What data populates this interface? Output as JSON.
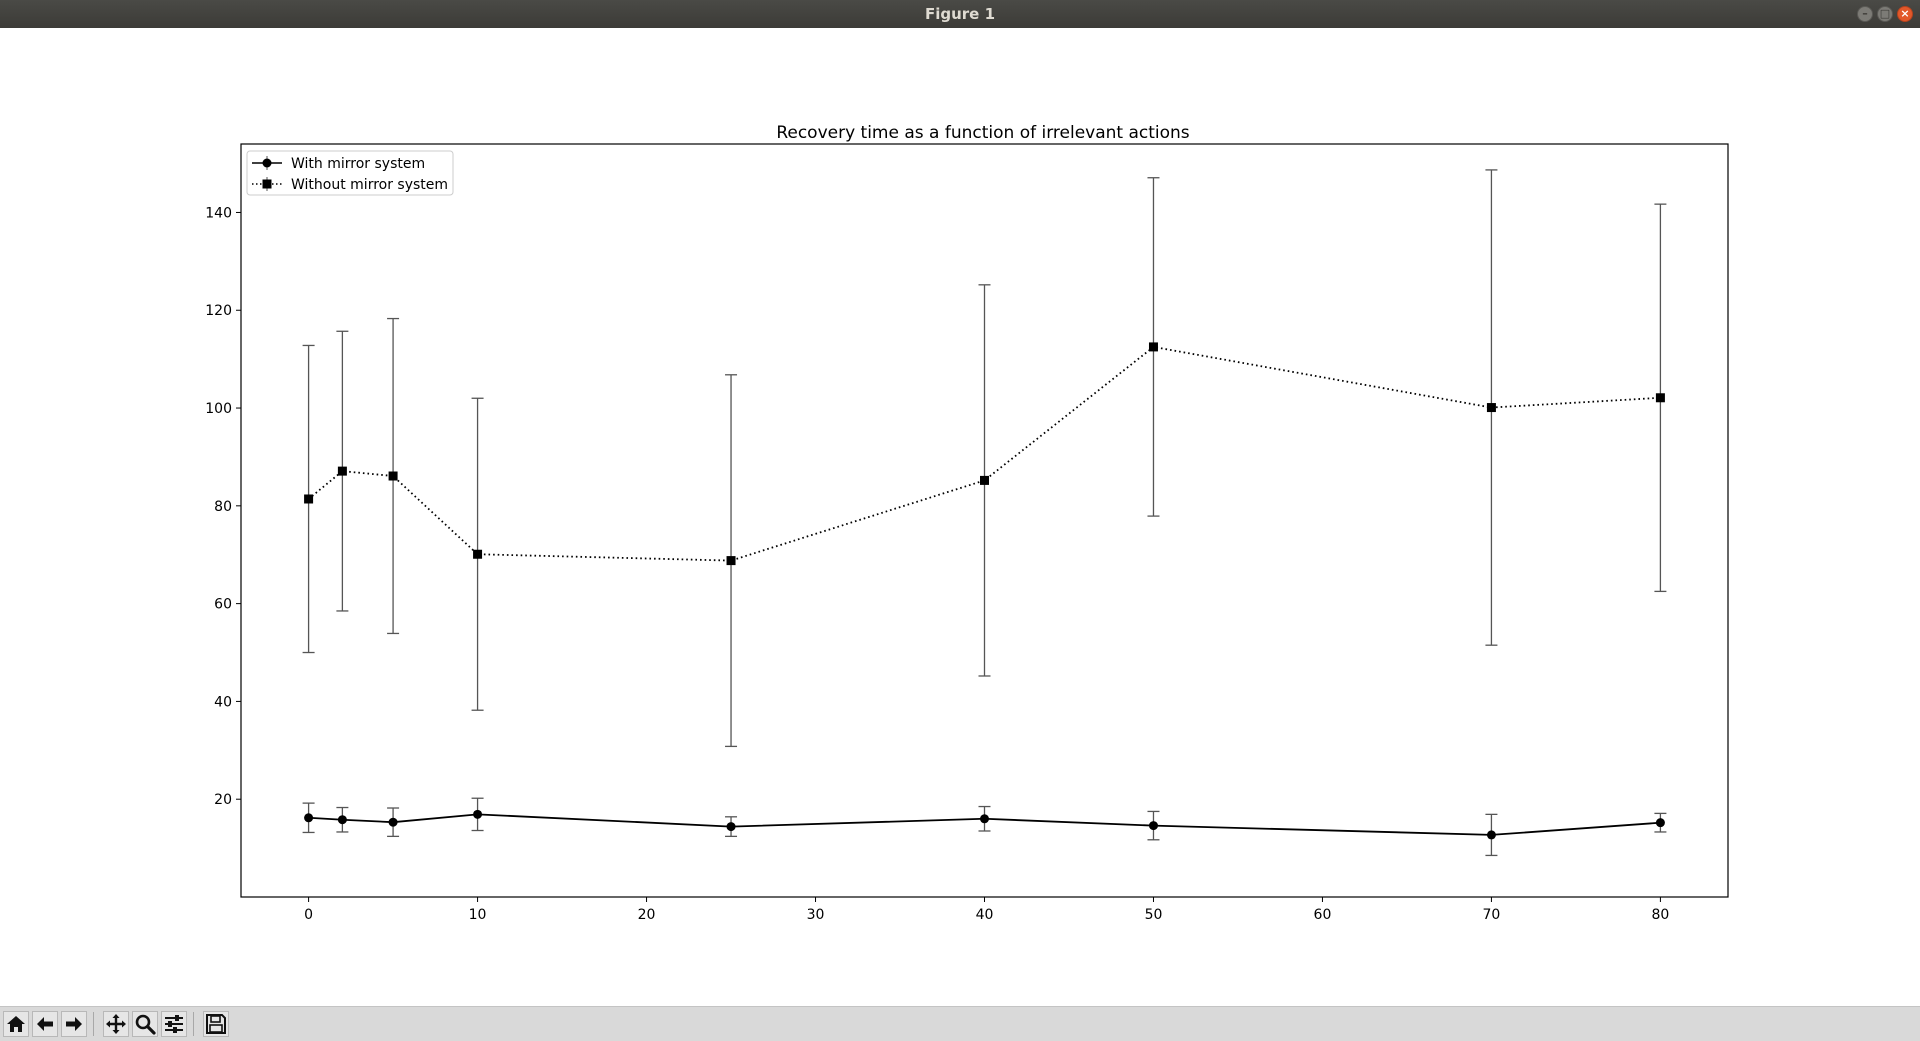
{
  "window": {
    "title": "Figure 1"
  },
  "toolbar": {
    "buttons": [
      {
        "name": "home-button",
        "icon": "home-icon"
      },
      {
        "name": "back-button",
        "icon": "arrow-left-icon"
      },
      {
        "name": "forward-button",
        "icon": "arrow-right-icon"
      },
      {
        "name": "pan-button",
        "icon": "move-icon"
      },
      {
        "name": "zoom-button",
        "icon": "magnifier-icon"
      },
      {
        "name": "configure-subplots-button",
        "icon": "sliders-icon"
      },
      {
        "name": "save-button",
        "icon": "floppy-disk-icon"
      }
    ]
  },
  "chart_data": {
    "type": "line",
    "title": "Recovery time as a function of irrelevant actions",
    "xlabel": "",
    "ylabel": "",
    "xlim": [
      -4,
      84
    ],
    "ylim": [
      0,
      154
    ],
    "xticks": [
      0,
      10,
      20,
      30,
      40,
      50,
      60,
      70,
      80
    ],
    "yticks": [
      20,
      40,
      60,
      80,
      100,
      120,
      140
    ],
    "grid": false,
    "legend_position": "upper left",
    "x": [
      0,
      2,
      5,
      10,
      25,
      40,
      50,
      70,
      80
    ],
    "series": [
      {
        "name": "With mirror system",
        "marker": "circle",
        "linestyle": "solid",
        "color": "#000000",
        "values": [
          16.2,
          15.8,
          15.3,
          16.9,
          14.4,
          16.0,
          14.6,
          12.7,
          15.2
        ],
        "errors": [
          3.0,
          2.5,
          2.9,
          3.3,
          2.0,
          2.5,
          2.9,
          4.2,
          1.9
        ]
      },
      {
        "name": "Without mirror system",
        "marker": "square",
        "linestyle": "dotted",
        "color": "#000000",
        "values": [
          81.4,
          87.1,
          86.1,
          70.1,
          68.8,
          85.2,
          112.5,
          100.1,
          102.1
        ],
        "errors": [
          31.4,
          28.6,
          32.2,
          31.9,
          38.0,
          40.0,
          34.6,
          48.6,
          39.6
        ]
      }
    ],
    "errorbar_color": "#555555"
  }
}
